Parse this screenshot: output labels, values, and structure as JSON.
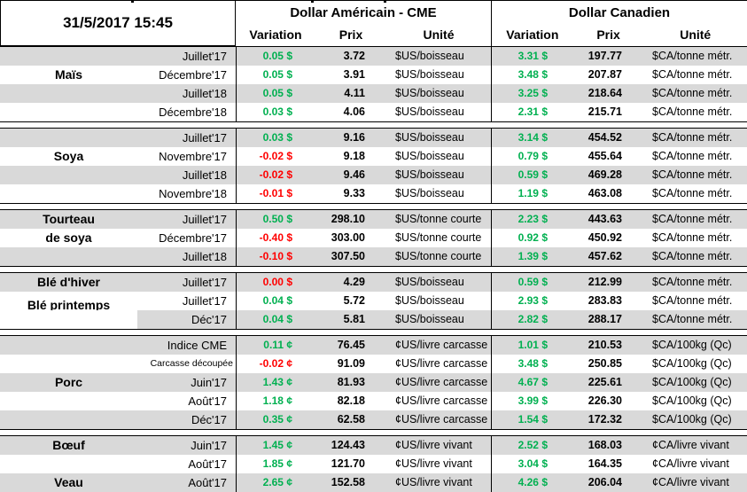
{
  "header": {
    "timestamp": "31/5/2017 15:45",
    "group_us": "Dollar Américain - CME",
    "group_ca": "Dollar Canadien",
    "col_variation": "Variation",
    "col_prix": "Prix",
    "col_unite": "Unité"
  },
  "colors": {
    "positive_variation": "#00B050",
    "negative_variation": "#FF0000",
    "row_stripe": "#D9D9D9",
    "grid": "#000000"
  },
  "sections": [
    {
      "id": "mais",
      "rows": [
        {
          "category": "",
          "month": "Juillet'17",
          "us": {
            "var": "0.05 $",
            "dir": "up",
            "prix": "3.72",
            "unit": "$US/boisseau"
          },
          "ca": {
            "var": "3.31 $",
            "dir": "up",
            "prix": "197.77",
            "unit": "$CA/tonne métr."
          }
        },
        {
          "category": "Maïs",
          "month": "Décembre'17",
          "us": {
            "var": "0.05 $",
            "dir": "up",
            "prix": "3.91",
            "unit": "$US/boisseau"
          },
          "ca": {
            "var": "3.48 $",
            "dir": "up",
            "prix": "207.87",
            "unit": "$CA/tonne métr."
          }
        },
        {
          "category": "",
          "month": "Juillet'18",
          "us": {
            "var": "0.05 $",
            "dir": "up",
            "prix": "4.11",
            "unit": "$US/boisseau"
          },
          "ca": {
            "var": "3.25 $",
            "dir": "up",
            "prix": "218.64",
            "unit": "$CA/tonne métr."
          }
        },
        {
          "category": "",
          "month": "Décembre'18",
          "us": {
            "var": "0.03 $",
            "dir": "up",
            "prix": "4.06",
            "unit": "$US/boisseau"
          },
          "ca": {
            "var": "2.31 $",
            "dir": "up",
            "prix": "215.71",
            "unit": "$CA/tonne métr."
          }
        }
      ]
    },
    {
      "id": "soya",
      "rows": [
        {
          "category": "",
          "month": "Juillet'17",
          "us": {
            "var": "0.03 $",
            "dir": "up",
            "prix": "9.16",
            "unit": "$US/boisseau"
          },
          "ca": {
            "var": "3.14 $",
            "dir": "up",
            "prix": "454.52",
            "unit": "$CA/tonne métr."
          }
        },
        {
          "category": "Soya",
          "month": "Novembre'17",
          "us": {
            "var": "-0.02 $",
            "dir": "down",
            "prix": "9.18",
            "unit": "$US/boisseau"
          },
          "ca": {
            "var": "0.79 $",
            "dir": "up",
            "prix": "455.64",
            "unit": "$CA/tonne métr."
          }
        },
        {
          "category": "",
          "month": "Juillet'18",
          "us": {
            "var": "-0.02 $",
            "dir": "down",
            "prix": "9.46",
            "unit": "$US/boisseau"
          },
          "ca": {
            "var": "0.59 $",
            "dir": "up",
            "prix": "469.28",
            "unit": "$CA/tonne métr."
          }
        },
        {
          "category": "",
          "month": "Novembre'18",
          "us": {
            "var": "-0.01 $",
            "dir": "down",
            "prix": "9.33",
            "unit": "$US/boisseau"
          },
          "ca": {
            "var": "1.19 $",
            "dir": "up",
            "prix": "463.08",
            "unit": "$CA/tonne métr."
          }
        }
      ]
    },
    {
      "id": "tourteau-de-soya",
      "rows": [
        {
          "category": "Tourteau",
          "month": "Juillet'17",
          "us": {
            "var": "0.50 $",
            "dir": "up",
            "prix": "298.10",
            "unit": "$US/tonne courte"
          },
          "ca": {
            "var": "2.23 $",
            "dir": "up",
            "prix": "443.63",
            "unit": "$CA/tonne métr."
          }
        },
        {
          "category": "de soya",
          "month": "Décembre'17",
          "us": {
            "var": "-0.40 $",
            "dir": "down",
            "prix": "303.00",
            "unit": "$US/tonne courte"
          },
          "ca": {
            "var": "0.92 $",
            "dir": "up",
            "prix": "450.92",
            "unit": "$CA/tonne métr."
          }
        },
        {
          "category": "",
          "month": "Juillet'18",
          "us": {
            "var": "-0.10 $",
            "dir": "down",
            "prix": "307.50",
            "unit": "$US/tonne courte"
          },
          "ca": {
            "var": "1.39 $",
            "dir": "up",
            "prix": "457.62",
            "unit": "$CA/tonne métr."
          }
        }
      ]
    },
    {
      "id": "ble",
      "rows": [
        {
          "category": "Blé d'hiver",
          "month": "Juillet'17",
          "us": {
            "var": "0.00 $",
            "dir": "down",
            "prix": "4.29",
            "unit": "$US/boisseau"
          },
          "ca": {
            "var": "0.59 $",
            "dir": "up",
            "prix": "212.99",
            "unit": "$CA/tonne métr."
          }
        },
        {
          "category": "Blé printemps",
          "cat_shift": true,
          "month": "Juillet'17",
          "us": {
            "var": "0.04 $",
            "dir": "up",
            "prix": "5.72",
            "unit": "$US/boisseau"
          },
          "ca": {
            "var": "2.93 $",
            "dir": "up",
            "prix": "283.83",
            "unit": "$CA/tonne métr."
          }
        },
        {
          "category": "",
          "cat_white": true,
          "month": "Déc'17",
          "us": {
            "var": "0.04 $",
            "dir": "up",
            "prix": "5.81",
            "unit": "$US/boisseau"
          },
          "ca": {
            "var": "2.82 $",
            "dir": "up",
            "prix": "288.17",
            "unit": "$CA/tonne métr."
          }
        }
      ]
    },
    {
      "id": "porc",
      "rows": [
        {
          "category": "",
          "month": "Indice CME",
          "us": {
            "var": "0.11 ¢",
            "dir": "up",
            "prix": "76.45",
            "unit": "¢US/livre carcasse"
          },
          "ca": {
            "var": "1.01 $",
            "dir": "up",
            "prix": "210.53",
            "unit": "$CA/100kg (Qc)"
          }
        },
        {
          "category": "",
          "month": "Carcasse découpée",
          "month_small": true,
          "us": {
            "var": "-0.02 ¢",
            "dir": "down",
            "prix": "91.09",
            "unit": "¢US/livre carcasse"
          },
          "ca": {
            "var": "3.48 $",
            "dir": "up",
            "prix": "250.85",
            "unit": "$CA/100kg (Qc)"
          }
        },
        {
          "category": "Porc",
          "month": "Juin'17",
          "us": {
            "var": "1.43 ¢",
            "dir": "up",
            "prix": "81.93",
            "unit": "¢US/livre carcasse"
          },
          "ca": {
            "var": "4.67 $",
            "dir": "up",
            "prix": "225.61",
            "unit": "$CA/100kg (Qc)"
          }
        },
        {
          "category": "",
          "month": "Août'17",
          "us": {
            "var": "1.18 ¢",
            "dir": "up",
            "prix": "82.18",
            "unit": "¢US/livre carcasse"
          },
          "ca": {
            "var": "3.99 $",
            "dir": "up",
            "prix": "226.30",
            "unit": "$CA/100kg (Qc)"
          }
        },
        {
          "category": "",
          "month": "Déc'17",
          "us": {
            "var": "0.35 ¢",
            "dir": "up",
            "prix": "62.58",
            "unit": "¢US/livre carcasse"
          },
          "ca": {
            "var": "1.54 $",
            "dir": "up",
            "prix": "172.32",
            "unit": "$CA/100kg (Qc)"
          }
        }
      ]
    },
    {
      "id": "boeuf-veau",
      "rows": [
        {
          "category": "Bœuf",
          "month": "Juin'17",
          "us": {
            "var": "1.45 ¢",
            "dir": "up",
            "prix": "124.43",
            "unit": "¢US/livre vivant"
          },
          "ca": {
            "var": "2.52 $",
            "dir": "up",
            "prix": "168.03",
            "unit": "¢CA/livre vivant"
          }
        },
        {
          "category": "",
          "month": "Août'17",
          "us": {
            "var": "1.85 ¢",
            "dir": "up",
            "prix": "121.70",
            "unit": "¢US/livre vivant"
          },
          "ca": {
            "var": "3.04 $",
            "dir": "up",
            "prix": "164.35",
            "unit": "¢CA/livre vivant"
          }
        },
        {
          "category": "Veau",
          "month": "Août'17",
          "us": {
            "var": "2.65 ¢",
            "dir": "up",
            "prix": "152.58",
            "unit": "¢US/livre vivant"
          },
          "ca": {
            "var": "4.26 $",
            "dir": "up",
            "prix": "206.04",
            "unit": "¢CA/livre vivant"
          }
        }
      ]
    }
  ]
}
